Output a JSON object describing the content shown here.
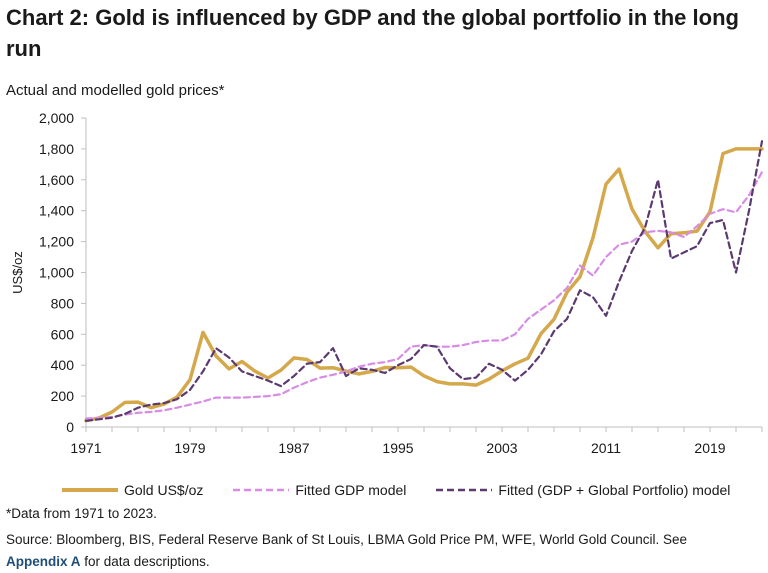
{
  "title": "Chart 2: Gold is influenced by GDP and the global portfolio in the long run",
  "subtitle": "Actual and modelled gold prices*",
  "note": "*Data from 1971 to 2023.",
  "source": {
    "text": "Source: Bloomberg, BIS, Federal Reserve Bank of St Louis, LBMA Gold Price PM, WFE, World Gold Council. See",
    "link": "Appendix A",
    "after": "for data descriptions."
  },
  "chart_data": {
    "type": "line",
    "ylabel": "US$/oz",
    "ylim": [
      0,
      2000
    ],
    "xlim": [
      1971,
      2023
    ],
    "y_ticks": [
      "0",
      "200",
      "400",
      "600",
      "800",
      "1,000",
      "1,200",
      "1,400",
      "1,600",
      "1,800",
      "2,000"
    ],
    "x_ticks": [
      "1971",
      "1979",
      "1987",
      "1995",
      "2003",
      "2011",
      "2019"
    ],
    "grid": false,
    "legend_position": "bottom",
    "x": [
      1971,
      1972,
      1973,
      1974,
      1975,
      1976,
      1977,
      1978,
      1979,
      1980,
      1981,
      1982,
      1983,
      1984,
      1985,
      1986,
      1987,
      1988,
      1989,
      1990,
      1991,
      1992,
      1993,
      1994,
      1995,
      1996,
      1997,
      1998,
      1999,
      2000,
      2001,
      2002,
      2003,
      2004,
      2005,
      2006,
      2007,
      2008,
      2009,
      2010,
      2011,
      2012,
      2013,
      2014,
      2015,
      2016,
      2017,
      2018,
      2019,
      2020,
      2021,
      2022,
      2023
    ],
    "series": [
      {
        "name": "Gold US$/oz",
        "color": "#D4A84B",
        "style": "solid",
        "values": [
          41,
          58,
          97,
          159,
          161,
          125,
          148,
          193,
          306,
          612,
          460,
          376,
          424,
          361,
          317,
          368,
          447,
          437,
          381,
          384,
          362,
          344,
          360,
          385,
          384,
          388,
          331,
          294,
          279,
          279,
          271,
          310,
          363,
          409,
          445,
          604,
          697,
          872,
          972,
          1225,
          1572,
          1669,
          1411,
          1266,
          1160,
          1251,
          1257,
          1268,
          1393,
          1770,
          1800,
          1800,
          1800
        ]
      },
      {
        "name": "Fitted GDP model",
        "color": "#D88CE6",
        "style": "dashed",
        "values": [
          55,
          58,
          65,
          80,
          92,
          98,
          108,
          125,
          145,
          165,
          190,
          190,
          190,
          195,
          200,
          212,
          255,
          290,
          320,
          338,
          360,
          390,
          410,
          420,
          440,
          520,
          530,
          520,
          520,
          530,
          550,
          560,
          560,
          600,
          700,
          760,
          820,
          900,
          1045,
          980,
          1100,
          1180,
          1200,
          1260,
          1270,
          1260,
          1230,
          1300,
          1380,
          1410,
          1390,
          1500,
          1650
        ]
      },
      {
        "name": "Fitted (GDP + Global Portfolio) model",
        "color": "#5B3A70",
        "style": "dashed",
        "values": [
          40,
          50,
          60,
          85,
          125,
          145,
          155,
          180,
          240,
          360,
          510,
          450,
          360,
          330,
          300,
          265,
          330,
          410,
          420,
          510,
          330,
          380,
          370,
          350,
          400,
          440,
          530,
          520,
          380,
          310,
          320,
          410,
          370,
          300,
          370,
          470,
          620,
          700,
          885,
          840,
          720,
          940,
          1140,
          1290,
          1600,
          1090,
          1130,
          1170,
          1320,
          1340,
          1000,
          1400,
          1850
        ]
      }
    ]
  }
}
